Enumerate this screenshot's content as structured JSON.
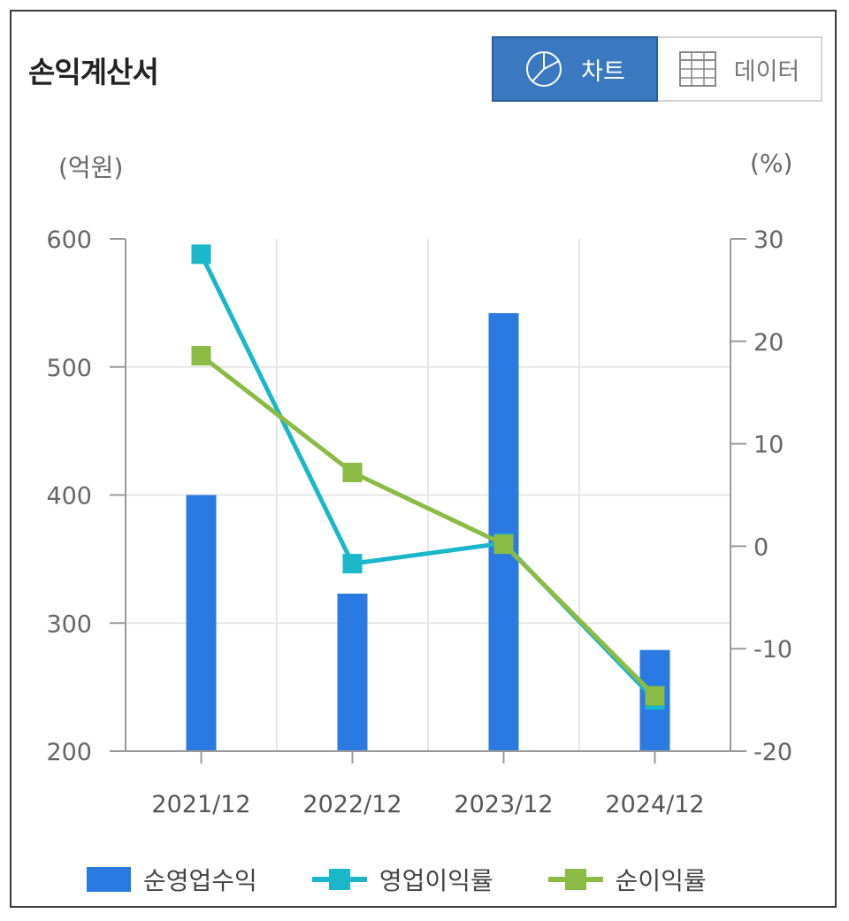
{
  "header": {
    "title": "손익계산서",
    "tab_chart_label": "차트",
    "tab_data_label": "데이터",
    "active_tab": "차트"
  },
  "icons": {
    "tab_chart": "pie-chart-icon",
    "tab_data": "table-grid-icon"
  },
  "colors": {
    "bar": "#2a7ae2",
    "operating_margin": "#1ab6c9",
    "net_margin": "#8bbb44",
    "tab_active": "#3a78c0"
  },
  "chart_data": {
    "type": "bar",
    "categories": [
      "2021/12",
      "2022/12",
      "2023/12",
      "2024/12"
    ],
    "series": [
      {
        "name": "순영업수익",
        "type": "bar",
        "axis": "left",
        "values": [
          400,
          323,
          542,
          279
        ]
      },
      {
        "name": "영업이익률",
        "type": "line",
        "axis": "right",
        "values": [
          28.5,
          -1.7,
          0.3,
          -15.0
        ]
      },
      {
        "name": "순이익률",
        "type": "line",
        "axis": "right",
        "values": [
          18.6,
          7.2,
          0.2,
          -14.6
        ]
      }
    ],
    "y_left": {
      "label": "(억원)",
      "range": [
        200,
        600
      ],
      "ticks": [
        "600",
        "500",
        "400",
        "300",
        "200"
      ]
    },
    "y_right": {
      "label": "(%)",
      "range": [
        -20,
        30
      ],
      "ticks": [
        "30",
        "20",
        "10",
        "0",
        "-10",
        "-20"
      ]
    },
    "grid": true,
    "legend_position": "bottom"
  }
}
